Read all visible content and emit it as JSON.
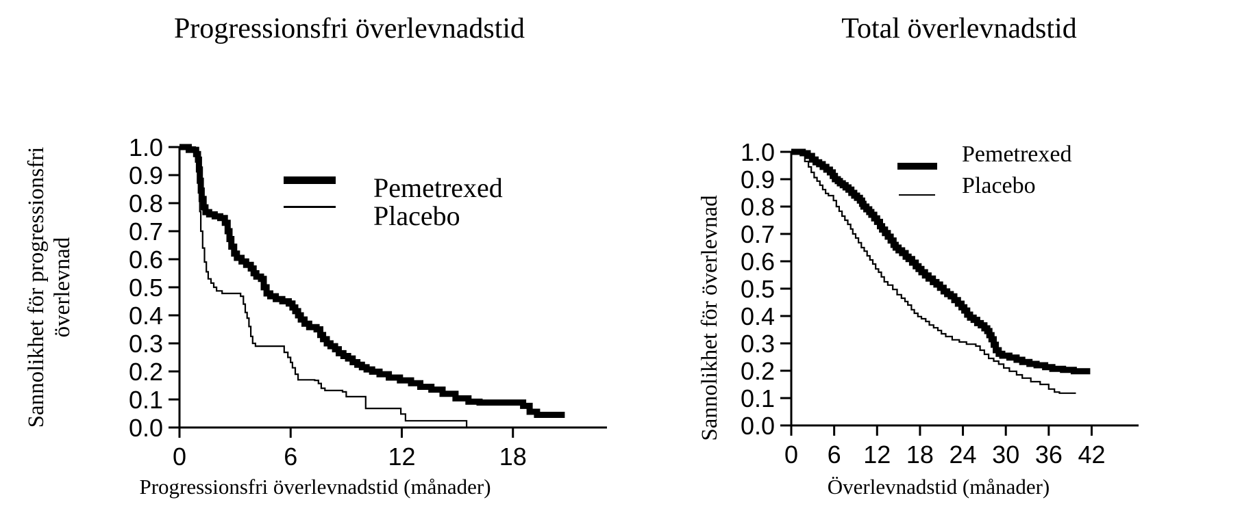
{
  "figure": {
    "background": "#ffffff",
    "curve_color": "#000000",
    "axis_color": "#000000"
  },
  "legend": {
    "pemetrexed_label": "Pemetrexed",
    "placebo_label": "Placebo"
  },
  "chart_data": [
    {
      "type": "line",
      "subtype": "kaplan-meier-step",
      "title": "Progressionsfri överlevnadstid",
      "ylabel_line1": "Sannolikhet för progressionsfri",
      "ylabel_line2": "överlevnad",
      "xlabel": "Progressionsfri överlevnadstid (månader)",
      "xlim": [
        0,
        23
      ],
      "ylim": [
        0,
        1
      ],
      "xticks": [
        0,
        6,
        12,
        18
      ],
      "yticks": [
        "1.0",
        "0.9",
        "0.8",
        "0.7",
        "0.6",
        "0.5",
        "0.4",
        "0.3",
        "0.2",
        "0.1",
        "0.0"
      ],
      "grid": false,
      "legend_position": "upper-right-inside",
      "series": [
        {
          "name": "Pemetrexed",
          "line_width": "thick",
          "points": [
            [
              0,
              1.0
            ],
            [
              0.5,
              0.99
            ],
            [
              0.9,
              0.975
            ],
            [
              1.0,
              0.955
            ],
            [
              1.05,
              0.92
            ],
            [
              1.1,
              0.88
            ],
            [
              1.15,
              0.845
            ],
            [
              1.2,
              0.815
            ],
            [
              1.3,
              0.785
            ],
            [
              1.4,
              0.768
            ],
            [
              1.6,
              0.76
            ],
            [
              1.9,
              0.753
            ],
            [
              2.2,
              0.747
            ],
            [
              2.45,
              0.73
            ],
            [
              2.6,
              0.7
            ],
            [
              2.7,
              0.672
            ],
            [
              2.8,
              0.645
            ],
            [
              2.95,
              0.62
            ],
            [
              3.1,
              0.605
            ],
            [
              3.35,
              0.592
            ],
            [
              3.6,
              0.58
            ],
            [
              3.85,
              0.567
            ],
            [
              4.0,
              0.55
            ],
            [
              4.15,
              0.538
            ],
            [
              4.4,
              0.53
            ],
            [
              4.55,
              0.5
            ],
            [
              4.7,
              0.478
            ],
            [
              4.9,
              0.468
            ],
            [
              5.2,
              0.458
            ],
            [
              5.55,
              0.45
            ],
            [
              5.9,
              0.442
            ],
            [
              6.1,
              0.428
            ],
            [
              6.25,
              0.415
            ],
            [
              6.4,
              0.4
            ],
            [
              6.55,
              0.385
            ],
            [
              6.75,
              0.37
            ],
            [
              7.0,
              0.358
            ],
            [
              7.4,
              0.35
            ],
            [
              7.6,
              0.33
            ],
            [
              7.75,
              0.315
            ],
            [
              7.95,
              0.3
            ],
            [
              8.15,
              0.29
            ],
            [
              8.4,
              0.279
            ],
            [
              8.6,
              0.265
            ],
            [
              8.85,
              0.255
            ],
            [
              9.1,
              0.246
            ],
            [
              9.35,
              0.233
            ],
            [
              9.6,
              0.224
            ],
            [
              9.85,
              0.215
            ],
            [
              10.1,
              0.207
            ],
            [
              10.4,
              0.199
            ],
            [
              10.8,
              0.19
            ],
            [
              11.3,
              0.178
            ],
            [
              11.9,
              0.168
            ],
            [
              12.5,
              0.158
            ],
            [
              13.0,
              0.145
            ],
            [
              13.6,
              0.135
            ],
            [
              14.2,
              0.12
            ],
            [
              14.9,
              0.104
            ],
            [
              15.6,
              0.092
            ],
            [
              16.2,
              0.089
            ],
            [
              18.3,
              0.089
            ],
            [
              18.55,
              0.077
            ],
            [
              18.9,
              0.056
            ],
            [
              19.3,
              0.045
            ],
            [
              20.8,
              0.045
            ]
          ]
        },
        {
          "name": "Placebo",
          "line_width": "thin",
          "points": [
            [
              0,
              1.0
            ],
            [
              0.85,
              0.99
            ],
            [
              1.0,
              0.945
            ],
            [
              1.05,
              0.86
            ],
            [
              1.1,
              0.77
            ],
            [
              1.15,
              0.7
            ],
            [
              1.25,
              0.64
            ],
            [
              1.35,
              0.59
            ],
            [
              1.45,
              0.555
            ],
            [
              1.55,
              0.53
            ],
            [
              1.7,
              0.515
            ],
            [
              1.85,
              0.5
            ],
            [
              2.0,
              0.487
            ],
            [
              2.3,
              0.478
            ],
            [
              3.3,
              0.468
            ],
            [
              3.45,
              0.44
            ],
            [
              3.55,
              0.41
            ],
            [
              3.65,
              0.39
            ],
            [
              3.75,
              0.36
            ],
            [
              3.85,
              0.325
            ],
            [
              3.95,
              0.3
            ],
            [
              4.1,
              0.29
            ],
            [
              5.5,
              0.29
            ],
            [
              5.65,
              0.268
            ],
            [
              5.85,
              0.25
            ],
            [
              6.0,
              0.232
            ],
            [
              6.1,
              0.213
            ],
            [
              6.25,
              0.19
            ],
            [
              6.4,
              0.17
            ],
            [
              7.3,
              0.168
            ],
            [
              7.5,
              0.157
            ],
            [
              7.65,
              0.14
            ],
            [
              7.85,
              0.132
            ],
            [
              8.8,
              0.127
            ],
            [
              9.0,
              0.11
            ],
            [
              10.0,
              0.11
            ],
            [
              10.05,
              0.068
            ],
            [
              11.85,
              0.068
            ],
            [
              11.95,
              0.048
            ],
            [
              12.2,
              0.024
            ],
            [
              15.5,
              0.024
            ],
            [
              15.5,
              0.0
            ]
          ]
        }
      ]
    },
    {
      "type": "line",
      "subtype": "kaplan-meier-step",
      "title": "Total överlevnadstid",
      "ylabel_line1": "Sannolikhet för överlevnad",
      "ylabel_line2": "",
      "xlabel": "Överlevnadstid (månader)",
      "xlim": [
        0,
        48
      ],
      "ylim": [
        0,
        1
      ],
      "xticks": [
        0,
        6,
        12,
        18,
        24,
        30,
        36,
        42
      ],
      "yticks": [
        "1.0",
        "0.9",
        "0.8",
        "0.7",
        "0.6",
        "0.5",
        "0.4",
        "0.3",
        "0.2",
        "0.1",
        "0.0"
      ],
      "grid": false,
      "legend_position": "upper-right-inside",
      "series": [
        {
          "name": "Pemetrexed",
          "line_width": "thick",
          "points": [
            [
              0,
              1.0
            ],
            [
              1.6,
              0.995
            ],
            [
              2.3,
              0.985
            ],
            [
              2.9,
              0.972
            ],
            [
              3.4,
              0.962
            ],
            [
              3.9,
              0.955
            ],
            [
              4.4,
              0.945
            ],
            [
              4.9,
              0.935
            ],
            [
              5.4,
              0.925
            ],
            [
              5.8,
              0.912
            ],
            [
              6.1,
              0.9
            ],
            [
              6.5,
              0.893
            ],
            [
              6.8,
              0.885
            ],
            [
              7.2,
              0.878
            ],
            [
              7.6,
              0.87
            ],
            [
              8.0,
              0.862
            ],
            [
              8.4,
              0.85
            ],
            [
              8.8,
              0.84
            ],
            [
              9.2,
              0.832
            ],
            [
              9.6,
              0.822
            ],
            [
              9.9,
              0.81
            ],
            [
              10.1,
              0.8
            ],
            [
              10.5,
              0.79
            ],
            [
              10.9,
              0.78
            ],
            [
              11.2,
              0.77
            ],
            [
              11.6,
              0.757
            ],
            [
              12.0,
              0.744
            ],
            [
              12.4,
              0.728
            ],
            [
              12.7,
              0.716
            ],
            [
              13.1,
              0.703
            ],
            [
              13.5,
              0.69
            ],
            [
              13.9,
              0.676
            ],
            [
              14.3,
              0.66
            ],
            [
              14.6,
              0.65
            ],
            [
              15.0,
              0.64
            ],
            [
              15.5,
              0.63
            ],
            [
              16.0,
              0.617
            ],
            [
              16.4,
              0.608
            ],
            [
              16.9,
              0.595
            ],
            [
              17.4,
              0.582
            ],
            [
              17.8,
              0.572
            ],
            [
              18.2,
              0.56
            ],
            [
              18.7,
              0.548
            ],
            [
              19.2,
              0.537
            ],
            [
              19.8,
              0.524
            ],
            [
              20.3,
              0.515
            ],
            [
              20.8,
              0.503
            ],
            [
              21.3,
              0.49
            ],
            [
              21.8,
              0.48
            ],
            [
              22.3,
              0.472
            ],
            [
              22.8,
              0.458
            ],
            [
              23.3,
              0.445
            ],
            [
              23.8,
              0.432
            ],
            [
              24.2,
              0.42
            ],
            [
              24.6,
              0.405
            ],
            [
              25.0,
              0.394
            ],
            [
              25.5,
              0.386
            ],
            [
              26.0,
              0.374
            ],
            [
              26.5,
              0.366
            ],
            [
              27.0,
              0.355
            ],
            [
              27.4,
              0.345
            ],
            [
              27.7,
              0.33
            ],
            [
              28.0,
              0.315
            ],
            [
              28.3,
              0.295
            ],
            [
              28.6,
              0.275
            ],
            [
              29.0,
              0.262
            ],
            [
              29.5,
              0.255
            ],
            [
              30.5,
              0.248
            ],
            [
              31.5,
              0.24
            ],
            [
              32.3,
              0.232
            ],
            [
              33.3,
              0.225
            ],
            [
              34.3,
              0.22
            ],
            [
              35.5,
              0.213
            ],
            [
              36.5,
              0.207
            ],
            [
              38.0,
              0.203
            ],
            [
              39.5,
              0.198
            ],
            [
              41.8,
              0.198
            ]
          ]
        },
        {
          "name": "Placebo",
          "line_width": "thin",
          "points": [
            [
              0,
              1.0
            ],
            [
              1.3,
              0.988
            ],
            [
              1.9,
              0.965
            ],
            [
              2.4,
              0.945
            ],
            [
              2.8,
              0.925
            ],
            [
              3.2,
              0.906
            ],
            [
              3.6,
              0.893
            ],
            [
              4.0,
              0.878
            ],
            [
              4.4,
              0.862
            ],
            [
              4.8,
              0.848
            ],
            [
              5.2,
              0.84
            ],
            [
              5.9,
              0.822
            ],
            [
              6.3,
              0.8
            ],
            [
              6.7,
              0.783
            ],
            [
              7.1,
              0.765
            ],
            [
              7.5,
              0.75
            ],
            [
              7.9,
              0.735
            ],
            [
              8.3,
              0.718
            ],
            [
              8.6,
              0.7
            ],
            [
              9.0,
              0.685
            ],
            [
              9.4,
              0.668
            ],
            [
              9.8,
              0.65
            ],
            [
              10.2,
              0.637
            ],
            [
              10.6,
              0.62
            ],
            [
              11.0,
              0.605
            ],
            [
              11.4,
              0.59
            ],
            [
              11.8,
              0.572
            ],
            [
              12.2,
              0.56
            ],
            [
              12.6,
              0.543
            ],
            [
              13.0,
              0.525
            ],
            [
              13.5,
              0.513
            ],
            [
              14.2,
              0.497
            ],
            [
              14.8,
              0.478
            ],
            [
              15.4,
              0.465
            ],
            [
              15.9,
              0.453
            ],
            [
              16.3,
              0.44
            ],
            [
              16.8,
              0.423
            ],
            [
              17.2,
              0.41
            ],
            [
              17.7,
              0.398
            ],
            [
              18.2,
              0.39
            ],
            [
              18.8,
              0.38
            ],
            [
              19.3,
              0.367
            ],
            [
              19.9,
              0.357
            ],
            [
              20.5,
              0.347
            ],
            [
              21.0,
              0.335
            ],
            [
              21.6,
              0.325
            ],
            [
              22.5,
              0.313
            ],
            [
              23.5,
              0.305
            ],
            [
              24.5,
              0.297
            ],
            [
              25.8,
              0.29
            ],
            [
              26.4,
              0.275
            ],
            [
              27.0,
              0.26
            ],
            [
              27.6,
              0.245
            ],
            [
              28.3,
              0.235
            ],
            [
              29.0,
              0.224
            ],
            [
              29.7,
              0.21
            ],
            [
              30.5,
              0.198
            ],
            [
              31.5,
              0.185
            ],
            [
              32.3,
              0.173
            ],
            [
              33.5,
              0.16
            ],
            [
              34.8,
              0.15
            ],
            [
              36.0,
              0.133
            ],
            [
              36.8,
              0.122
            ],
            [
              37.5,
              0.118
            ],
            [
              39.8,
              0.118
            ]
          ]
        }
      ]
    }
  ]
}
